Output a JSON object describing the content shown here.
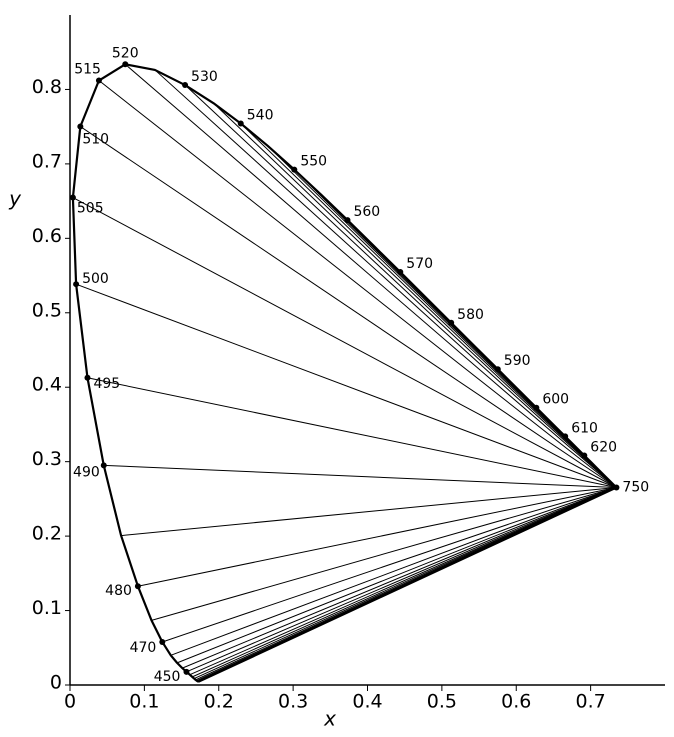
{
  "chart_data": {
    "type": "line",
    "xlabel": "x",
    "ylabel": "y",
    "xlim": [
      0,
      0.8
    ],
    "ylim": [
      0,
      0.9
    ],
    "xticks": [
      0,
      0.1,
      0.2,
      0.3,
      0.4,
      0.5,
      0.6,
      0.7
    ],
    "yticks": [
      0,
      0.1,
      0.2,
      0.3,
      0.4,
      0.5,
      0.6,
      0.7,
      0.8
    ],
    "color": "#000000",
    "locus": {
      "x": [
        0.1741,
        0.174,
        0.1738,
        0.1736,
        0.1733,
        0.173,
        0.1726,
        0.1721,
        0.1714,
        0.1703,
        0.1689,
        0.1669,
        0.1644,
        0.1611,
        0.1566,
        0.151,
        0.144,
        0.1355,
        0.1241,
        0.1096,
        0.0913,
        0.0687,
        0.0454,
        0.0235,
        0.0082,
        0.0039,
        0.0139,
        0.0389,
        0.0743,
        0.1142,
        0.1547,
        0.1929,
        0.2296,
        0.2658,
        0.3016,
        0.3373,
        0.3731,
        0.4087,
        0.4441,
        0.4788,
        0.5125,
        0.5448,
        0.5752,
        0.6029,
        0.627,
        0.6482,
        0.6658,
        0.6801,
        0.6915,
        0.7006,
        0.7079,
        0.719,
        0.726,
        0.73,
        0.7334,
        0.7347
      ],
      "y": [
        0.005,
        0.005,
        0.0049,
        0.0049,
        0.0048,
        0.0048,
        0.0048,
        0.0048,
        0.0051,
        0.0058,
        0.0069,
        0.0086,
        0.0109,
        0.0138,
        0.0177,
        0.0227,
        0.0297,
        0.0399,
        0.0578,
        0.0868,
        0.1327,
        0.2007,
        0.295,
        0.4127,
        0.5384,
        0.6548,
        0.7502,
        0.812,
        0.8338,
        0.8262,
        0.8059,
        0.7816,
        0.7543,
        0.7243,
        0.6923,
        0.6589,
        0.6245,
        0.5896,
        0.5547,
        0.5202,
        0.4866,
        0.4544,
        0.4242,
        0.3965,
        0.3725,
        0.3514,
        0.334,
        0.3197,
        0.3083,
        0.2993,
        0.292,
        0.2809,
        0.274,
        0.27,
        0.2666,
        0.2653
      ]
    },
    "points": {
      "labels": [
        "450",
        "470",
        "480",
        "490",
        "495",
        "500",
        "505",
        "510",
        "515",
        "520",
        "530",
        "540",
        "550",
        "560",
        "570",
        "580",
        "590",
        "600",
        "610",
        "620",
        "750"
      ],
      "x": [
        0.1566,
        0.1241,
        0.0913,
        0.0454,
        0.0235,
        0.0082,
        0.0039,
        0.0139,
        0.0389,
        0.0743,
        0.1547,
        0.2296,
        0.3016,
        0.3731,
        0.4441,
        0.5125,
        0.5752,
        0.627,
        0.6658,
        0.6915,
        0.7347
      ],
      "y": [
        0.0177,
        0.0578,
        0.1327,
        0.295,
        0.4127,
        0.5384,
        0.6548,
        0.7502,
        0.812,
        0.8338,
        0.8059,
        0.7543,
        0.6923,
        0.6245,
        0.5547,
        0.4866,
        0.4242,
        0.3725,
        0.334,
        0.3083,
        0.2653
      ]
    }
  }
}
